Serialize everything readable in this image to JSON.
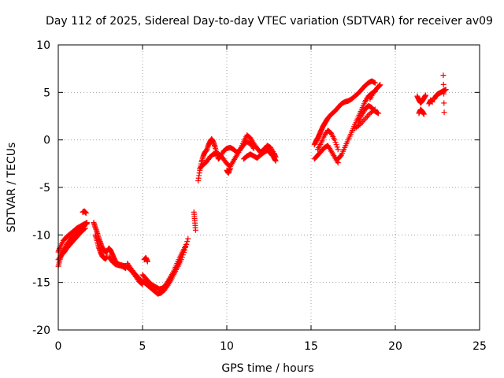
{
  "chart_data": {
    "type": "scatter",
    "title": "Day 112 of 2025, Sidereal Day-to-day VTEC variation (SDTVAR) for receiver av09",
    "xlabel": "GPS time / hours",
    "ylabel": "SDTVAR / TECUs",
    "xlim": [
      0,
      25
    ],
    "ylim": [
      -20,
      10
    ],
    "xticks": [
      0,
      5,
      10,
      15,
      20,
      25
    ],
    "yticks": [
      -20,
      -15,
      -10,
      -5,
      0,
      5,
      10
    ],
    "grid": true,
    "marker": "+",
    "color": "#ff0000",
    "series": [
      {
        "name": "SDTVAR",
        "segments": [
          {
            "x": [
              0.0,
              0.1,
              0.2,
              0.3,
              0.5,
              0.7,
              0.9,
              1.1,
              1.3,
              1.5,
              1.6,
              1.7
            ],
            "y": [
              -13.3,
              -12.6,
              -12.0,
              -11.6,
              -11.0,
              -10.5,
              -10.1,
              -9.7,
              -9.4,
              -9.1,
              -8.9,
              -8.8
            ]
          },
          {
            "x": [
              0.0,
              0.1,
              0.3,
              0.5,
              0.7,
              0.9,
              1.1,
              1.3,
              1.5,
              1.7
            ],
            "y": [
              -11.8,
              -11.3,
              -10.6,
              -10.2,
              -9.9,
              -9.6,
              -9.3,
              -9.1,
              -8.9,
              -8.7
            ]
          },
          {
            "x": [
              0.0,
              0.2,
              0.4,
              0.6,
              0.8,
              1.0,
              1.2,
              1.4,
              1.6
            ],
            "y": [
              -12.6,
              -12.1,
              -11.7,
              -11.2,
              -10.8,
              -10.4,
              -10.0,
              -9.6,
              -9.3
            ]
          },
          {
            "x": [
              1.45,
              1.55,
              1.65
            ],
            "y": [
              -7.6,
              -7.5,
              -7.7
            ]
          },
          {
            "x": [
              2.1,
              2.2,
              2.3,
              2.4,
              2.5,
              2.6,
              2.7,
              2.8,
              2.9,
              3.0,
              3.1,
              3.2,
              3.3,
              3.4,
              3.6,
              3.8,
              4.0,
              4.2,
              4.4,
              4.6,
              4.8,
              5.0
            ],
            "y": [
              -8.7,
              -9.2,
              -9.7,
              -10.3,
              -10.8,
              -11.3,
              -11.6,
              -11.8,
              -11.7,
              -11.4,
              -11.6,
              -12.0,
              -12.4,
              -12.8,
              -13.1,
              -13.2,
              -13.3,
              -13.5,
              -13.9,
              -14.4,
              -14.9,
              -15.2
            ]
          },
          {
            "x": [
              2.2,
              2.3,
              2.4,
              2.5,
              2.6,
              2.7,
              2.8,
              2.9
            ],
            "y": [
              -10.0,
              -10.6,
              -11.3,
              -11.8,
              -12.2,
              -12.4,
              -12.5,
              -12.3
            ]
          },
          {
            "x": [
              3.0,
              3.2,
              3.4,
              3.6,
              3.8,
              4.0
            ],
            "y": [
              -12.3,
              -12.8,
              -13.1,
              -13.2,
              -13.3,
              -13.5
            ]
          },
          {
            "x": [
              4.1,
              4.3,
              4.5,
              4.7,
              4.9,
              5.1,
              5.3,
              5.5,
              5.7,
              5.9,
              6.1,
              6.3,
              6.5,
              6.7,
              6.9,
              7.1,
              7.3,
              7.5,
              7.7
            ],
            "y": [
              -13.0,
              -13.5,
              -14.0,
              -14.4,
              -14.8,
              -15.0,
              -15.3,
              -15.6,
              -15.9,
              -16.2,
              -16.1,
              -15.8,
              -15.3,
              -14.7,
              -14.0,
              -13.3,
              -12.6,
              -11.6,
              -10.4
            ]
          },
          {
            "x": [
              5.0,
              5.2,
              5.4,
              5.6,
              5.8,
              6.0,
              6.2,
              6.4,
              6.6,
              6.8,
              7.0,
              7.2,
              7.4,
              7.6
            ],
            "y": [
              -14.2,
              -14.6,
              -15.0,
              -15.3,
              -15.5,
              -15.7,
              -15.6,
              -15.2,
              -14.6,
              -14.0,
              -13.2,
              -12.4,
              -11.7,
              -11.0
            ]
          },
          {
            "x": [
              5.1,
              5.2,
              5.3
            ],
            "y": [
              -12.6,
              -12.4,
              -12.8
            ]
          },
          {
            "x": [
              8.05,
              8.1,
              8.15
            ],
            "y": [
              -7.6,
              -8.5,
              -9.5
            ]
          },
          {
            "x": [
              8.3,
              8.4,
              8.5,
              8.6,
              8.7,
              8.8,
              8.9,
              9.0,
              9.1,
              9.2,
              9.3,
              9.4,
              9.5,
              9.6,
              9.8,
              10.0,
              10.2,
              10.4,
              10.6
            ],
            "y": [
              -4.3,
              -3.2,
              -2.3,
              -1.7,
              -1.3,
              -1.1,
              -0.6,
              -0.2,
              0.1,
              -0.2,
              -0.7,
              -1.4,
              -2.0,
              -1.8,
              -1.2,
              -0.9,
              -0.8,
              -1.0,
              -1.3
            ]
          },
          {
            "x": [
              8.4,
              8.6,
              8.8,
              9.0,
              9.2,
              9.4,
              9.6,
              9.8,
              10.0,
              10.2,
              10.4,
              10.6,
              10.8,
              11.0,
              11.2,
              11.4,
              11.6
            ],
            "y": [
              -3.0,
              -2.6,
              -2.3,
              -1.8,
              -1.5,
              -1.4,
              -1.6,
              -2.0,
              -2.5,
              -2.8,
              -2.2,
              -1.6,
              -1.0,
              -0.5,
              -0.2,
              -0.4,
              -0.9
            ]
          },
          {
            "x": [
              10.0,
              10.1,
              10.2
            ],
            "y": [
              -3.2,
              -3.5,
              -3.0
            ]
          },
          {
            "x": [
              10.6,
              10.8,
              11.0,
              11.2,
              11.4,
              11.6,
              11.8,
              12.0,
              12.2,
              12.4,
              12.6,
              12.8,
              12.9
            ],
            "y": [
              -1.3,
              -1.0,
              -0.2,
              0.5,
              0.2,
              -0.4,
              -0.9,
              -1.3,
              -1.0,
              -0.6,
              -0.8,
              -1.4,
              -1.8
            ]
          },
          {
            "x": [
              11.0,
              11.2,
              11.4,
              11.6,
              11.8,
              12.0,
              12.2,
              12.4,
              12.6,
              12.8,
              12.9
            ],
            "y": [
              -2.0,
              -1.7,
              -1.5,
              -1.7,
              -1.9,
              -1.6,
              -1.3,
              -1.1,
              -1.4,
              -1.9,
              -2.2
            ]
          },
          {
            "x": [
              15.2,
              15.3,
              15.4,
              15.5,
              15.6,
              15.7,
              15.8,
              15.9,
              16.0,
              16.2,
              16.4,
              16.6,
              16.8,
              17.0,
              17.2,
              17.4,
              17.6,
              17.8,
              18.0,
              18.2,
              18.4,
              18.6,
              18.8
            ],
            "y": [
              -0.5,
              -0.1,
              0.2,
              0.6,
              1.0,
              1.4,
              1.7,
              2.0,
              2.3,
              2.7,
              3.0,
              3.4,
              3.8,
              4.0,
              4.1,
              4.3,
              4.6,
              4.9,
              5.3,
              5.7,
              6.0,
              6.2,
              6.0
            ]
          },
          {
            "x": [
              15.2,
              15.4,
              15.6,
              15.8,
              16.0,
              16.2,
              16.4,
              16.6
            ],
            "y": [
              -2.0,
              -1.6,
              -1.2,
              -0.8,
              -0.6,
              -1.2,
              -1.8,
              -2.4
            ]
          },
          {
            "x": [
              15.4,
              15.6,
              15.8,
              16.0,
              16.2,
              16.4,
              16.6
            ],
            "y": [
              -1.0,
              -0.3,
              0.5,
              1.0,
              0.7,
              0.0,
              -1.0
            ]
          },
          {
            "x": [
              16.6,
              16.8,
              17.0,
              17.2,
              17.4,
              17.6,
              17.8,
              18.0,
              18.2,
              18.4,
              18.6,
              18.8
            ],
            "y": [
              -2.0,
              -1.6,
              -0.8,
              0.0,
              0.8,
              1.6,
              2.4,
              3.2,
              4.0,
              4.6,
              4.9,
              5.1
            ]
          },
          {
            "x": [
              17.8,
              18.0,
              18.2,
              18.4,
              18.6,
              18.8,
              19.0
            ],
            "y": [
              1.8,
              2.6,
              3.2,
              3.6,
              3.4,
              3.0,
              2.8
            ]
          },
          {
            "x": [
              17.6,
              17.9,
              18.2,
              18.5,
              18.8
            ],
            "y": [
              1.2,
              1.6,
              2.2,
              2.8,
              3.2
            ]
          },
          {
            "x": [
              18.5,
              18.7,
              18.9,
              19.0,
              19.1
            ],
            "y": [
              4.3,
              5.0,
              5.4,
              5.6,
              5.8
            ]
          },
          {
            "x": [
              21.3,
              21.4,
              21.5,
              21.6,
              21.7,
              21.8
            ],
            "y": [
              4.6,
              4.2,
              3.9,
              4.1,
              4.4,
              4.7
            ]
          },
          {
            "x": [
              21.4,
              21.5,
              21.6,
              21.7
            ],
            "y": [
              2.8,
              3.2,
              3.0,
              2.7
            ]
          },
          {
            "x": [
              22.0,
              22.1,
              22.2
            ],
            "y": [
              3.8,
              4.2,
              4.0
            ]
          },
          {
            "x": [
              22.3,
              22.4,
              22.5,
              22.6,
              22.7,
              22.8,
              22.9,
              23.0
            ],
            "y": [
              4.3,
              4.6,
              4.8,
              4.9,
              5.0,
              5.1,
              5.2,
              5.3
            ]
          },
          {
            "x": [
              22.85,
              22.9
            ],
            "y": [
              6.8,
              2.9
            ]
          }
        ]
      }
    ]
  }
}
